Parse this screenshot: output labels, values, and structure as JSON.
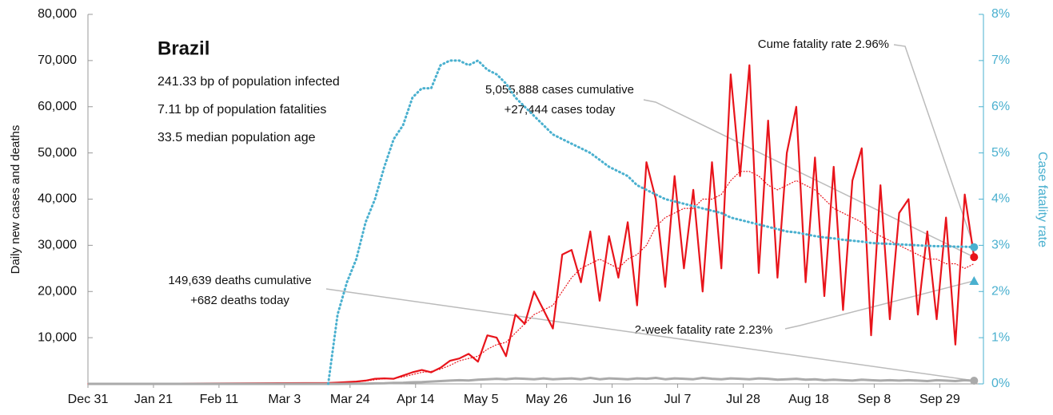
{
  "chart_data": {
    "type": "line",
    "info": {
      "title": "Brazil",
      "lines": [
        "241.33 bp of population infected",
        "7.11 bp of population fatalities",
        "33.5 median population age"
      ]
    },
    "ylabel": "Daily new cases and deaths",
    "y2label": "Case fatality rate",
    "annotations": [
      "Cume fatality rate 2.96%",
      "5,055,888 cases cumulative",
      "+27,444 cases today",
      "149,639 deaths cumulative",
      "+682 deaths today",
      "2-week fatality rate 2.23%"
    ],
    "two_week_fatality_rate": 2.23,
    "xlim": [
      0,
      287
    ],
    "xticks": [
      {
        "value": 0,
        "label": "Dec 31"
      },
      {
        "value": 21,
        "label": "Jan 21"
      },
      {
        "value": 42,
        "label": "Feb 11"
      },
      {
        "value": 63,
        "label": "Mar 3"
      },
      {
        "value": 84,
        "label": "Mar 24"
      },
      {
        "value": 105,
        "label": "Apr 14"
      },
      {
        "value": 126,
        "label": "May 5"
      },
      {
        "value": 147,
        "label": "May 26"
      },
      {
        "value": 168,
        "label": "Jun 16"
      },
      {
        "value": 189,
        "label": "Jul 7"
      },
      {
        "value": 210,
        "label": "Jul 28"
      },
      {
        "value": 231,
        "label": "Aug 18"
      },
      {
        "value": 252,
        "label": "Sep 8"
      },
      {
        "value": 273,
        "label": "Sep 29"
      }
    ],
    "ylim": [
      0,
      80000
    ],
    "yticks": [
      {
        "value": 10000,
        "label": "10,000"
      },
      {
        "value": 20000,
        "label": "20,000"
      },
      {
        "value": 30000,
        "label": "30,000"
      },
      {
        "value": 40000,
        "label": "40,000"
      },
      {
        "value": 50000,
        "label": "50,000"
      },
      {
        "value": 60000,
        "label": "60,000"
      },
      {
        "value": 70000,
        "label": "70,000"
      },
      {
        "value": 80000,
        "label": "80,000"
      }
    ],
    "y2lim": [
      0,
      8
    ],
    "y2ticks": [
      {
        "value": 0,
        "label": "0%"
      },
      {
        "value": 1,
        "label": "1%"
      },
      {
        "value": 2,
        "label": "2%"
      },
      {
        "value": 3,
        "label": "3%"
      },
      {
        "value": 4,
        "label": "4%"
      },
      {
        "value": 5,
        "label": "5%"
      },
      {
        "value": 6,
        "label": "6%"
      },
      {
        "value": 7,
        "label": "7%"
      },
      {
        "value": 8,
        "label": "8%"
      }
    ],
    "x": [
      0,
      77,
      80,
      83,
      86,
      89,
      92,
      95,
      98,
      101,
      104,
      107,
      110,
      113,
      116,
      119,
      122,
      125,
      128,
      131,
      134,
      137,
      140,
      143,
      146,
      149,
      152,
      155,
      158,
      161,
      164,
      167,
      170,
      173,
      176,
      179,
      182,
      185,
      188,
      191,
      194,
      197,
      200,
      203,
      206,
      209,
      212,
      215,
      218,
      221,
      224,
      227,
      230,
      233,
      236,
      239,
      242,
      245,
      248,
      251,
      254,
      257,
      260,
      263,
      266,
      269,
      272,
      275,
      278,
      281,
      284
    ],
    "series": [
      {
        "color": "#e8141b",
        "style": "solid",
        "width": 2.2,
        "values": [
          0,
          200,
          300,
          400,
          500,
          700,
          1100,
          1200,
          1100,
          1800,
          2500,
          3000,
          2500,
          3500,
          5000,
          5500,
          6500,
          4800,
          10500,
          10000,
          6000,
          15000,
          13000,
          20000,
          16000,
          12000,
          28000,
          29000,
          22000,
          33000,
          18000,
          32000,
          23000,
          35000,
          17000,
          48000,
          40000,
          21000,
          45000,
          25000,
          42000,
          20000,
          48000,
          25000,
          67000,
          45000,
          69000,
          24000,
          57000,
          23000,
          50000,
          60000,
          22000,
          49000,
          19000,
          47000,
          16000,
          44000,
          51000,
          10500,
          43000,
          14000,
          37000,
          40000,
          15000,
          33000,
          14000,
          36000,
          8500,
          41000,
          27444
        ]
      },
      {
        "color": "#e8141b",
        "style": "dotted",
        "width": 1.2,
        "values": [
          0,
          150,
          250,
          350,
          450,
          600,
          900,
          1100,
          1200,
          1500,
          2000,
          2500,
          2700,
          3200,
          4000,
          5000,
          5500,
          6000,
          7500,
          8500,
          9000,
          11000,
          13000,
          15000,
          16000,
          17000,
          20000,
          23000,
          25000,
          26000,
          27000,
          26000,
          25000,
          27000,
          28000,
          30000,
          34000,
          36000,
          37000,
          38000,
          38000,
          40000,
          40000,
          41000,
          44000,
          46000,
          46000,
          45000,
          43000,
          42000,
          43000,
          44000,
          43000,
          42000,
          40000,
          38000,
          37000,
          36000,
          35000,
          33000,
          32000,
          31000,
          30000,
          29000,
          28000,
          27000,
          27000,
          26000,
          26000,
          25000,
          26000
        ]
      },
      {
        "color": "#aaaaaa",
        "style": "solid",
        "width": 3,
        "values": [
          0,
          0,
          5,
          20,
          40,
          60,
          100,
          120,
          200,
          250,
          350,
          400,
          500,
          600,
          700,
          800,
          750,
          900,
          1000,
          1100,
          1000,
          1200,
          1100,
          1000,
          1200,
          1000,
          1100,
          1200,
          1000,
          1300,
          1000,
          1200,
          1100,
          1000,
          1200,
          1100,
          1300,
          1000,
          1200,
          1100,
          1000,
          1300,
          1100,
          1000,
          1200,
          1100,
          1000,
          1200,
          1100,
          900,
          1000,
          1100,
          900,
          1000,
          800,
          900,
          800,
          700,
          900,
          800,
          700,
          800,
          700,
          800,
          700,
          600,
          800,
          700,
          600,
          800,
          682
        ]
      },
      {
        "color": "#4ab0cf",
        "style": "dotted",
        "width": 3,
        "axis": "y2",
        "values": [
          null,
          0,
          1.5,
          2.2,
          2.7,
          3.5,
          4.0,
          4.7,
          5.3,
          5.6,
          6.2,
          6.4,
          6.4,
          6.9,
          7.0,
          7.0,
          6.9,
          7.0,
          6.8,
          6.7,
          6.5,
          6.2,
          6.0,
          5.8,
          5.6,
          5.4,
          5.3,
          5.2,
          5.1,
          5.0,
          4.85,
          4.7,
          4.6,
          4.5,
          4.3,
          4.2,
          4.1,
          4.0,
          3.95,
          3.9,
          3.85,
          3.8,
          3.75,
          3.7,
          3.6,
          3.55,
          3.5,
          3.45,
          3.4,
          3.35,
          3.3,
          3.28,
          3.24,
          3.2,
          3.17,
          3.15,
          3.12,
          3.1,
          3.08,
          3.05,
          3.04,
          3.03,
          3.02,
          3.01,
          3.0,
          2.99,
          2.98,
          2.98,
          2.97,
          2.97,
          2.96
        ]
      }
    ]
  }
}
